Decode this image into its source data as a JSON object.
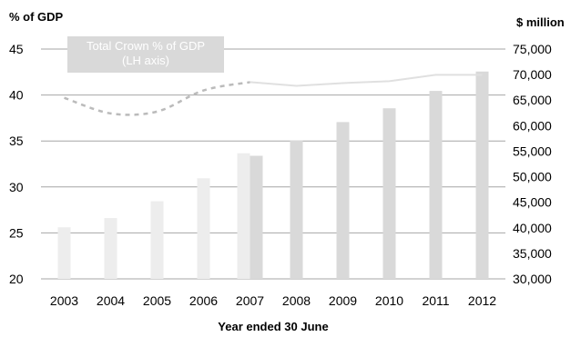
{
  "chart_data": {
    "type": "bar",
    "left_axis_title": "% of GDP",
    "right_axis_title": "$ million",
    "xlabel": "Year ended 30 June",
    "categories": [
      "2003",
      "2004",
      "2005",
      "2006",
      "2007",
      "2008",
      "2009",
      "2010",
      "2011",
      "2012"
    ],
    "left_axis": {
      "min": 20,
      "max": 45,
      "ticks": [
        "20",
        "25",
        "30",
        "35",
        "40",
        "45"
      ]
    },
    "right_axis": {
      "min": 30000,
      "max": 75000,
      "ticks": [
        "30,000",
        "35,000",
        "40,000",
        "45,000",
        "50,000",
        "55,000",
        "60,000",
        "65,000",
        "70,000",
        "75,000"
      ]
    },
    "grid": true,
    "series": [
      {
        "kind": "bar",
        "axis": "right",
        "color": "#ededed",
        "values": [
          40100,
          41900,
          45200,
          49700,
          54600,
          null,
          null,
          null,
          null,
          null
        ]
      },
      {
        "kind": "bar",
        "axis": "right",
        "color": "#d9d9d9",
        "values": [
          null,
          null,
          null,
          null,
          54100,
          57100,
          60700,
          63400,
          66800,
          70600
        ]
      },
      {
        "kind": "line",
        "axis": "left",
        "style": "dashed",
        "color": "#bbbbbb",
        "values": [
          39.7,
          38.0,
          38.2,
          40.5,
          41.4,
          null,
          null,
          null,
          null,
          null
        ]
      },
      {
        "kind": "line",
        "axis": "left",
        "style": "solid",
        "color": "#e0e0e0",
        "values": [
          null,
          null,
          null,
          null,
          41.4,
          41.0,
          41.3,
          41.5,
          42.2,
          42.2
        ]
      }
    ],
    "annotation": {
      "lines": [
        "Total Crown % of GDP",
        "(LH axis)"
      ],
      "box_color": "#d9d9d9"
    }
  }
}
